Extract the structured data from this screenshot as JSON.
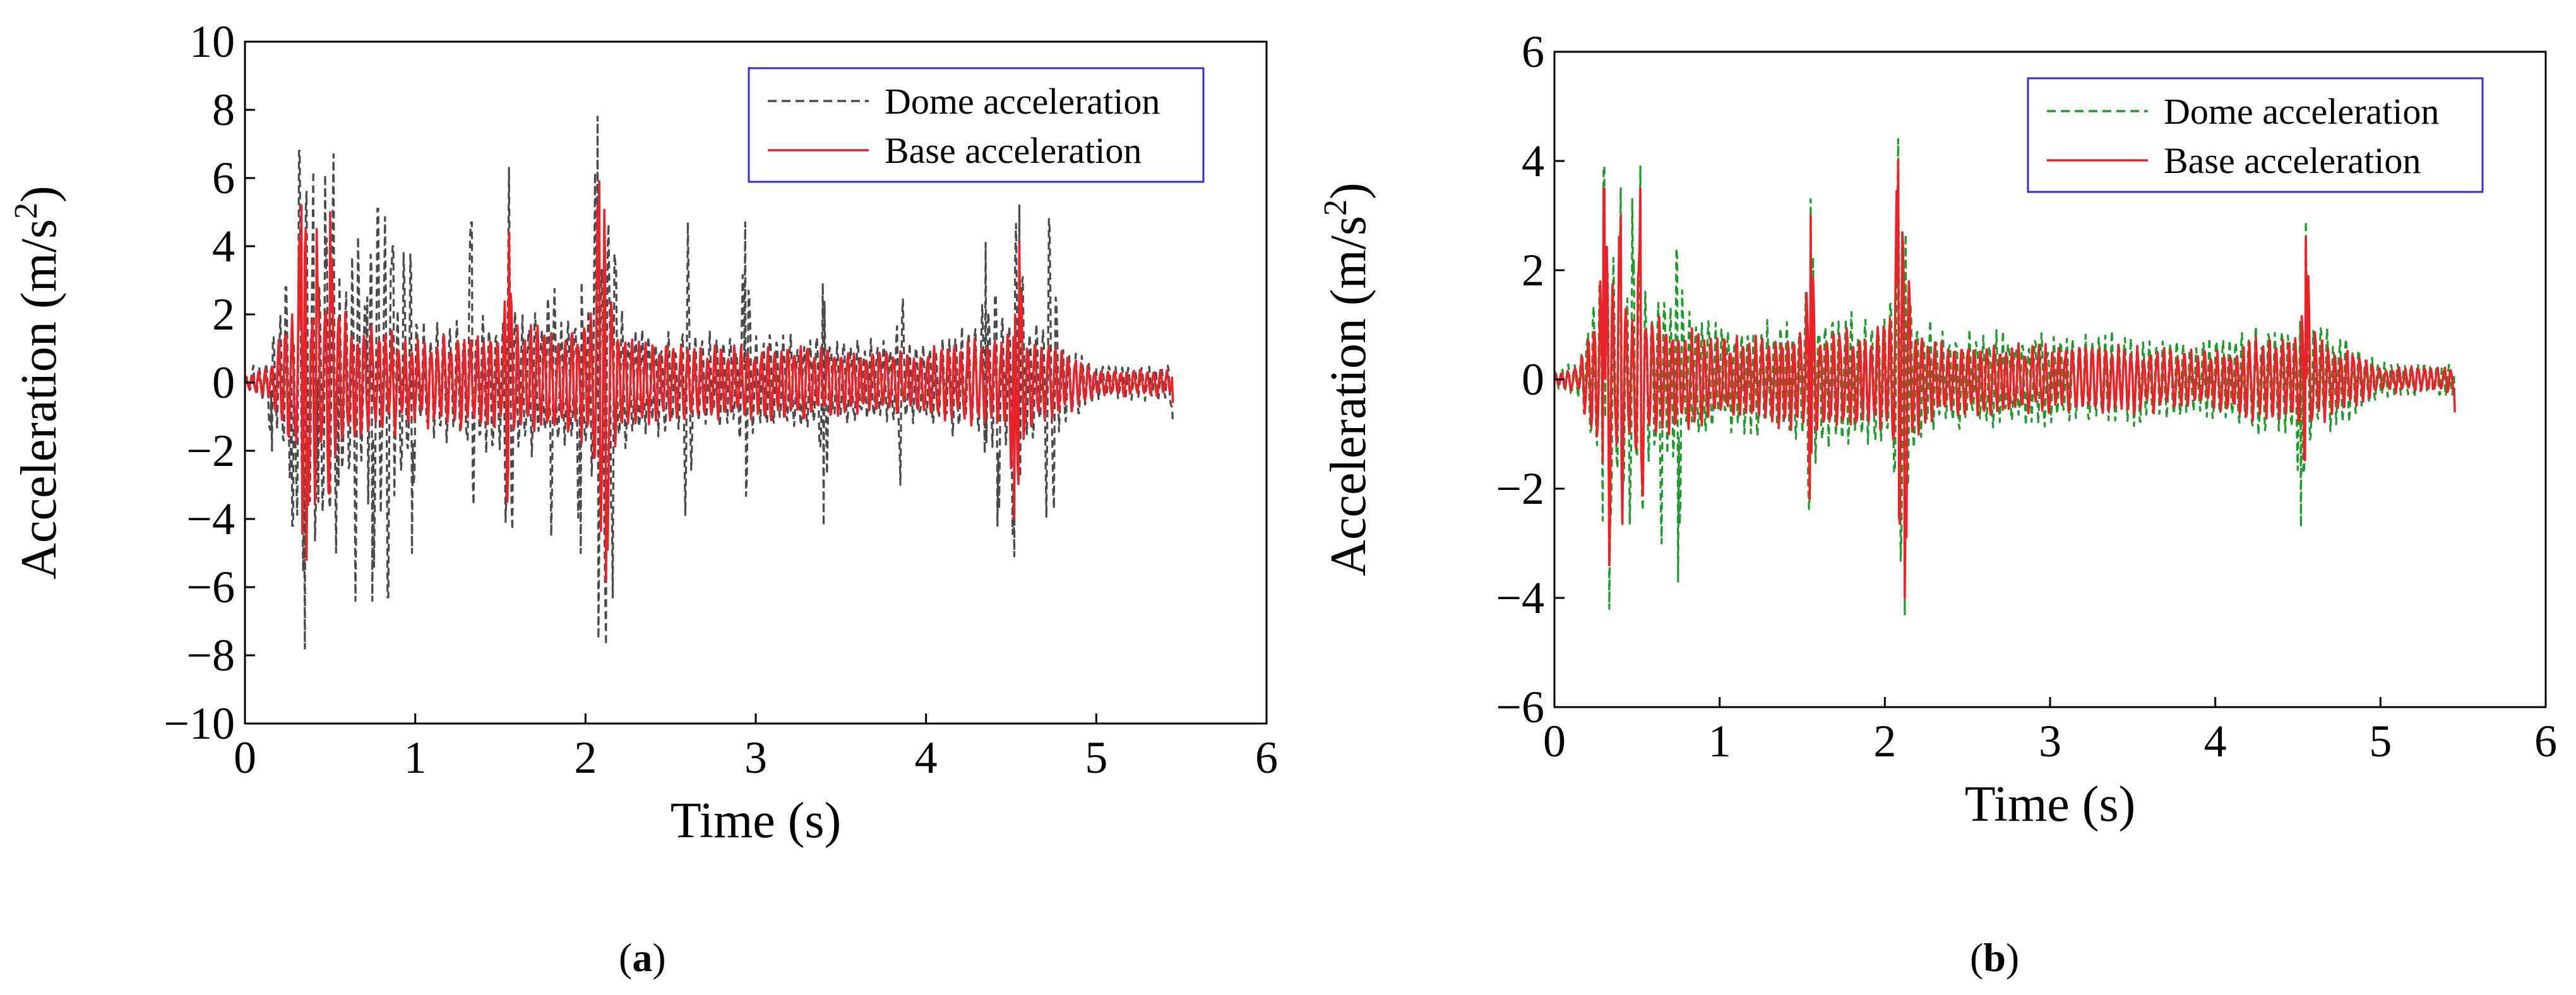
{
  "figure": {
    "captions": [
      {
        "open": "(",
        "letter": "a",
        "close": ")"
      },
      {
        "open": "(",
        "letter": "b",
        "close": ")"
      }
    ]
  },
  "chart_data": [
    {
      "type": "line",
      "panel": "a",
      "xlabel": "Time (s)",
      "ylabel_prefix": "Acceleration (m/s",
      "ylabel_sup": "2",
      "ylabel_suffix": ")",
      "xlim": [
        0,
        6
      ],
      "ylim": [
        -10,
        10
      ],
      "xticks": [
        0,
        1,
        2,
        3,
        4,
        5,
        6
      ],
      "yticks": [
        -10,
        -8,
        -6,
        -4,
        -2,
        0,
        2,
        4,
        6,
        8,
        10
      ],
      "grid": false,
      "legend_position": "top-right",
      "duration": 5.45,
      "series": [
        {
          "name": "Dome acceleration",
          "color": "#4a4a4a",
          "dash": "dashed",
          "peaks": [
            {
              "t": 0.05,
              "v": 0.5
            },
            {
              "t": 0.16,
              "v": -2.0
            },
            {
              "t": 0.24,
              "v": 2.8
            },
            {
              "t": 0.28,
              "v": -4.2
            },
            {
              "t": 0.32,
              "v": 6.8
            },
            {
              "t": 0.35,
              "v": -7.8
            },
            {
              "t": 0.4,
              "v": 6.2
            },
            {
              "t": 0.43,
              "v": -3.5
            },
            {
              "t": 0.47,
              "v": 6.1
            },
            {
              "t": 0.49,
              "v": -2.5
            },
            {
              "t": 0.52,
              "v": 6.7
            },
            {
              "t": 0.55,
              "v": -3.0
            },
            {
              "t": 0.65,
              "v": -6.4
            },
            {
              "t": 0.72,
              "v": 2.5
            },
            {
              "t": 0.75,
              "v": -6.4
            },
            {
              "t": 0.78,
              "v": 5.1
            },
            {
              "t": 0.84,
              "v": -6.3
            },
            {
              "t": 0.87,
              "v": 4.0
            },
            {
              "t": 0.93,
              "v": 3.8
            },
            {
              "t": 0.98,
              "v": -5.0
            },
            {
              "t": 1.33,
              "v": 4.7
            },
            {
              "t": 1.55,
              "v": 6.3
            },
            {
              "t": 1.8,
              "v": -4.5
            },
            {
              "t": 1.97,
              "v": -5.0
            },
            {
              "t": 2.07,
              "v": 7.8
            },
            {
              "t": 2.12,
              "v": -7.7
            },
            {
              "t": 2.16,
              "v": -6.3
            },
            {
              "t": 2.6,
              "v": 4.7
            },
            {
              "t": 2.94,
              "v": 4.7
            },
            {
              "t": 3.4,
              "v": -4.2
            },
            {
              "t": 3.85,
              "v": -3.0
            },
            {
              "t": 4.35,
              "v": 4.1
            },
            {
              "t": 4.42,
              "v": -4.2
            },
            {
              "t": 4.52,
              "v": -5.1
            },
            {
              "t": 4.55,
              "v": 5.2
            },
            {
              "t": 4.72,
              "v": 4.8
            },
            {
              "t": 4.75,
              "v": -3.7
            },
            {
              "t": 5.45,
              "v": -1.2
            }
          ]
        },
        {
          "name": "Base acceleration",
          "color": "#e8232a",
          "dash": "solid",
          "peaks": [
            {
              "t": 0.33,
              "v": 5.2
            },
            {
              "t": 0.36,
              "v": -5.2
            },
            {
              "t": 0.42,
              "v": 4.5
            },
            {
              "t": 0.5,
              "v": 5.0
            },
            {
              "t": 1.55,
              "v": 4.4
            },
            {
              "t": 2.08,
              "v": 5.9
            },
            {
              "t": 2.12,
              "v": -5.8
            },
            {
              "t": 4.52,
              "v": -4.0
            },
            {
              "t": 4.55,
              "v": 4.1
            }
          ]
        }
      ]
    },
    {
      "type": "line",
      "panel": "b",
      "xlabel": "Time (s)",
      "ylabel_prefix": "Acceleration (m/s",
      "ylabel_sup": "2",
      "ylabel_suffix": ")",
      "xlim": [
        0,
        6
      ],
      "ylim": [
        -6,
        6
      ],
      "xticks": [
        0,
        1,
        2,
        3,
        4,
        5,
        6
      ],
      "yticks": [
        -6,
        -4,
        -2,
        0,
        2,
        4,
        6
      ],
      "grid": false,
      "legend_position": "top-right",
      "duration": 5.45,
      "series": [
        {
          "name": "Dome acceleration",
          "color": "#1f9a2a",
          "dash": "dashed",
          "peaks": [
            {
              "t": 0.3,
              "v": 3.9
            },
            {
              "t": 0.33,
              "v": -4.2
            },
            {
              "t": 0.4,
              "v": 3.5
            },
            {
              "t": 0.47,
              "v": 3.3
            },
            {
              "t": 0.52,
              "v": 3.9
            },
            {
              "t": 0.65,
              "v": -3.0
            },
            {
              "t": 0.75,
              "v": -3.7
            },
            {
              "t": 1.55,
              "v": 3.3
            },
            {
              "t": 2.08,
              "v": 4.4
            },
            {
              "t": 2.12,
              "v": -4.3
            },
            {
              "t": 4.52,
              "v": -2.7
            },
            {
              "t": 4.55,
              "v": 2.9
            }
          ]
        },
        {
          "name": "Base acceleration",
          "color": "#e8232a",
          "dash": "solid",
          "peaks": [
            {
              "t": 0.3,
              "v": 3.5
            },
            {
              "t": 0.33,
              "v": -3.4
            },
            {
              "t": 0.4,
              "v": 3.0
            },
            {
              "t": 0.52,
              "v": 3.5
            },
            {
              "t": 1.55,
              "v": 3.0
            },
            {
              "t": 2.08,
              "v": 4.0
            },
            {
              "t": 2.12,
              "v": -4.0
            },
            {
              "t": 4.55,
              "v": 2.6
            }
          ]
        }
      ]
    }
  ]
}
